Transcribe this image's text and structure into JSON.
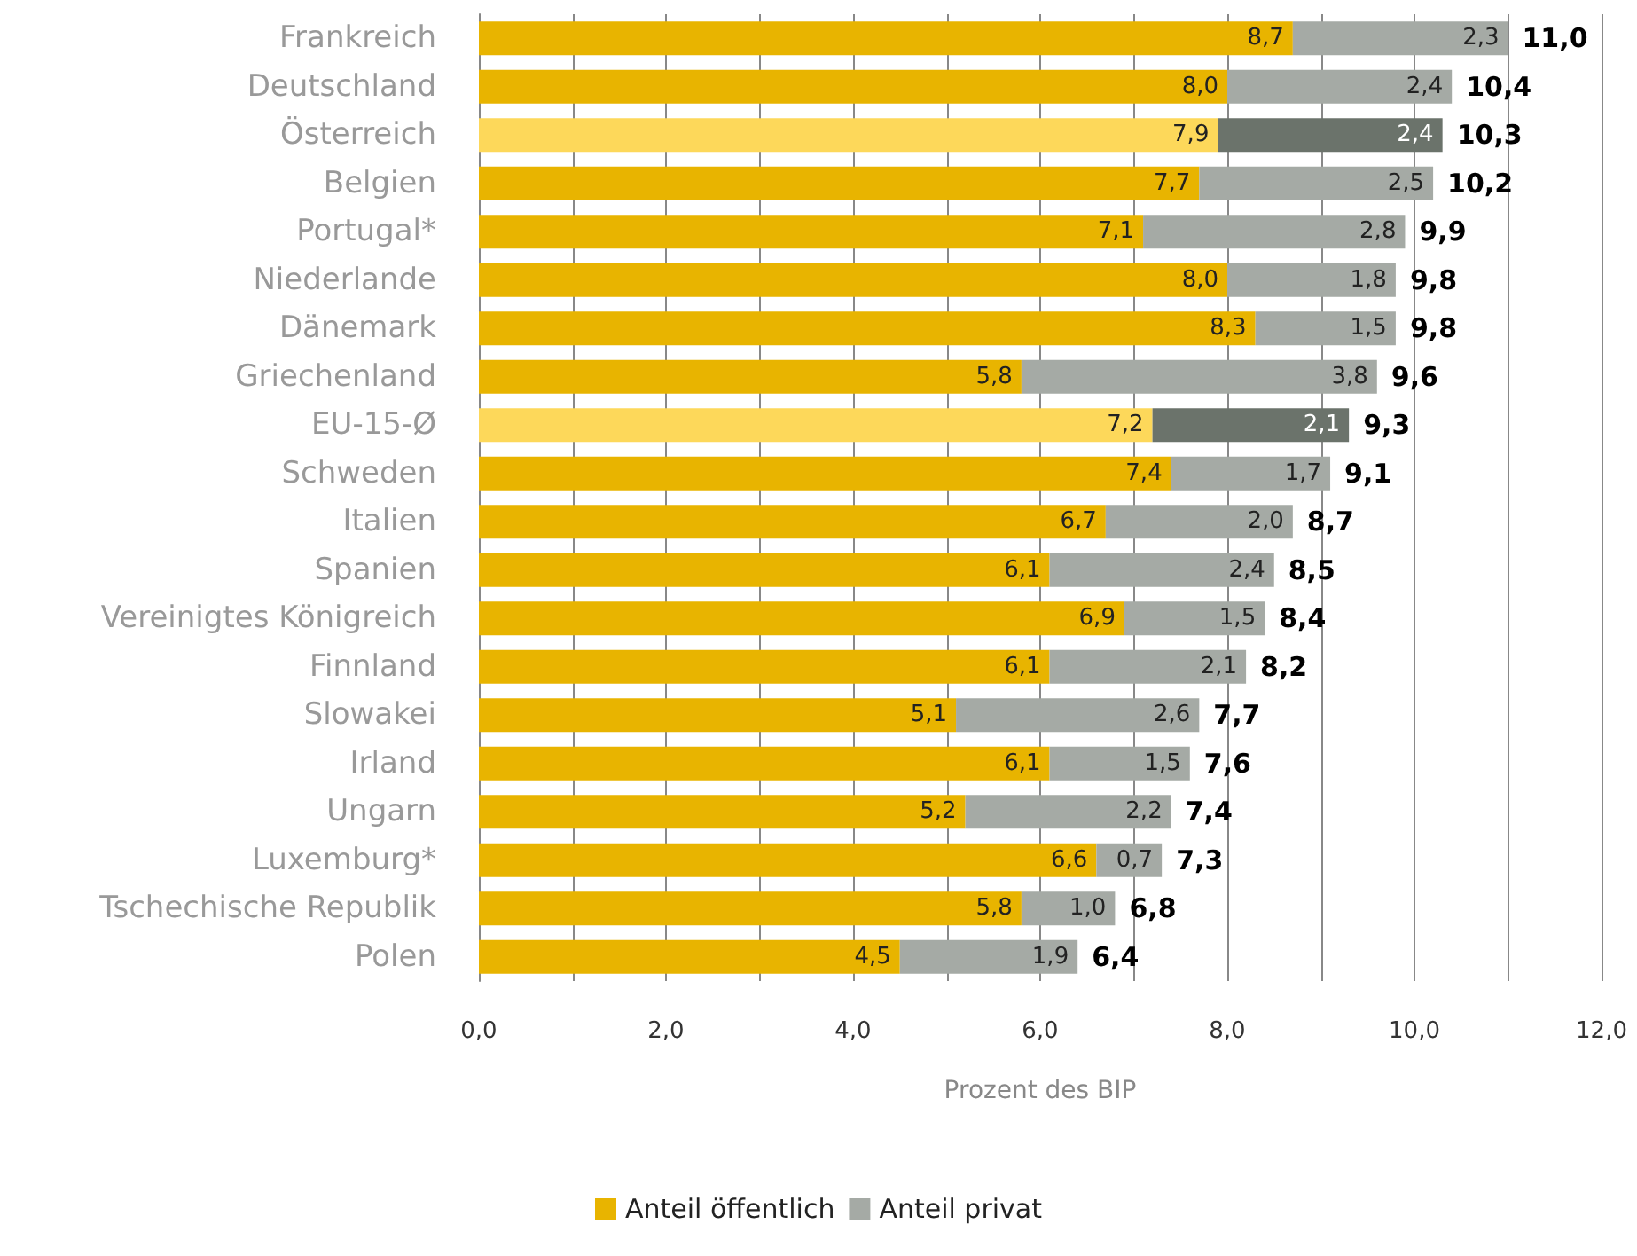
{
  "chart_data": {
    "type": "bar",
    "orientation": "horizontal",
    "stacked": true,
    "xlabel": "Prozent des BIP",
    "categories": [
      "Frankreich",
      "Deutschland",
      "Österreich",
      "Belgien",
      "Portugal*",
      "Niederlande",
      "Dänemark",
      "Griechenland",
      "EU-15-Ø",
      "Schweden",
      "Italien",
      "Spanien",
      "Vereinigtes Königreich",
      "Finnland",
      "Slowakei",
      "Irland",
      "Ungarn",
      "Luxemburg*",
      "Tschechische Republik",
      "Polen"
    ],
    "series": [
      {
        "name": "Anteil öffentlich",
        "color": "#e8b400",
        "colors": [
          "#e8b400",
          "#e8b400",
          "#fdd85a",
          "#e8b400",
          "#e8b400",
          "#e8b400",
          "#e8b400",
          "#e8b400",
          "#fdd85a",
          "#e8b400",
          "#e8b400",
          "#e8b400",
          "#e8b400",
          "#e8b400",
          "#e8b400",
          "#e8b400",
          "#e8b400",
          "#e8b400",
          "#e8b400",
          "#e8b400"
        ],
        "values": [
          8.7,
          8.0,
          7.9,
          7.7,
          7.1,
          8.0,
          8.3,
          5.8,
          7.2,
          7.4,
          6.7,
          6.1,
          6.9,
          6.1,
          5.1,
          6.1,
          5.2,
          6.6,
          5.8,
          4.5
        ],
        "value_labels": [
          "8,7",
          "8,0",
          "7,9",
          "7,7",
          "7,1",
          "8,0",
          "8,3",
          "5,8",
          "7,2",
          "7,4",
          "6,7",
          "6,1",
          "6,9",
          "6,1",
          "5,1",
          "6,1",
          "5,2",
          "6,6",
          "5,8",
          "4,5"
        ]
      },
      {
        "name": "Anteil privat",
        "color": "#a5aaa5",
        "colors": [
          "#a5aaa5",
          "#a5aaa5",
          "#6b736b",
          "#a5aaa5",
          "#a5aaa5",
          "#a5aaa5",
          "#a5aaa5",
          "#a5aaa5",
          "#6b736b",
          "#a5aaa5",
          "#a5aaa5",
          "#a5aaa5",
          "#a5aaa5",
          "#a5aaa5",
          "#a5aaa5",
          "#a5aaa5",
          "#a5aaa5",
          "#a5aaa5",
          "#a5aaa5",
          "#a5aaa5"
        ],
        "values": [
          2.3,
          2.4,
          2.4,
          2.5,
          2.8,
          1.8,
          1.5,
          3.8,
          2.1,
          1.7,
          2.0,
          2.4,
          1.5,
          2.1,
          2.6,
          1.5,
          2.2,
          0.7,
          1.0,
          1.9
        ],
        "value_labels": [
          "2,3",
          "2,4",
          "2,4",
          "2,5",
          "2,8",
          "1,8",
          "1,5",
          "3,8",
          "2,1",
          "1,7",
          "2,0",
          "2,4",
          "1,5",
          "2,1",
          "2,6",
          "1,5",
          "2,2",
          "0,7",
          "1,0",
          "1,9"
        ]
      }
    ],
    "totals": [
      "11,0",
      "10,4",
      "10,3",
      "10,2",
      "9,9",
      "9,8",
      "9,8",
      "9,6",
      "9,3",
      "9,1",
      "8,7",
      "8,5",
      "8,4",
      "8,2",
      "7,7",
      "7,6",
      "7,4",
      "7,3",
      "6,8",
      "6,4"
    ],
    "xlim": [
      0,
      12
    ],
    "xticks": [
      {
        "value": 0,
        "label": "0,0"
      },
      {
        "value": 1,
        "label": null
      },
      {
        "value": 2,
        "label": "2,0"
      },
      {
        "value": 3,
        "label": null
      },
      {
        "value": 4,
        "label": "4,0"
      },
      {
        "value": 5,
        "label": null
      },
      {
        "value": 6,
        "label": "6,0"
      },
      {
        "value": 7,
        "label": null
      },
      {
        "value": 8,
        "label": "8,0"
      },
      {
        "value": 9,
        "label": null
      },
      {
        "value": 10,
        "label": "10,0"
      },
      {
        "value": 11,
        "label": null
      },
      {
        "value": 12,
        "label": "12,0"
      }
    ],
    "grid": "x",
    "legend": "bottom"
  }
}
